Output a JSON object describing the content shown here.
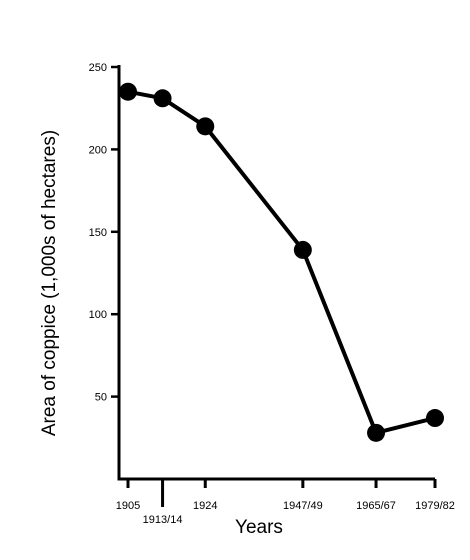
{
  "chart_data": {
    "type": "line",
    "categories": [
      "1905",
      "1913/14",
      "1924",
      "1947/49",
      "1965/67",
      "1979/82"
    ],
    "x": [
      1905,
      1913.5,
      1924,
      1948,
      1966,
      1980.5
    ],
    "values": [
      235,
      231,
      214,
      139,
      28,
      37
    ],
    "xlabel": "Years",
    "ylabel": "Area of coppice (1,000s of hectares)",
    "ylim": [
      0,
      250
    ],
    "yticks": [
      50,
      100,
      150,
      200,
      250
    ],
    "grid": false,
    "legend": "none",
    "colors": {
      "line": "#000000",
      "marker": "#000000"
    }
  }
}
